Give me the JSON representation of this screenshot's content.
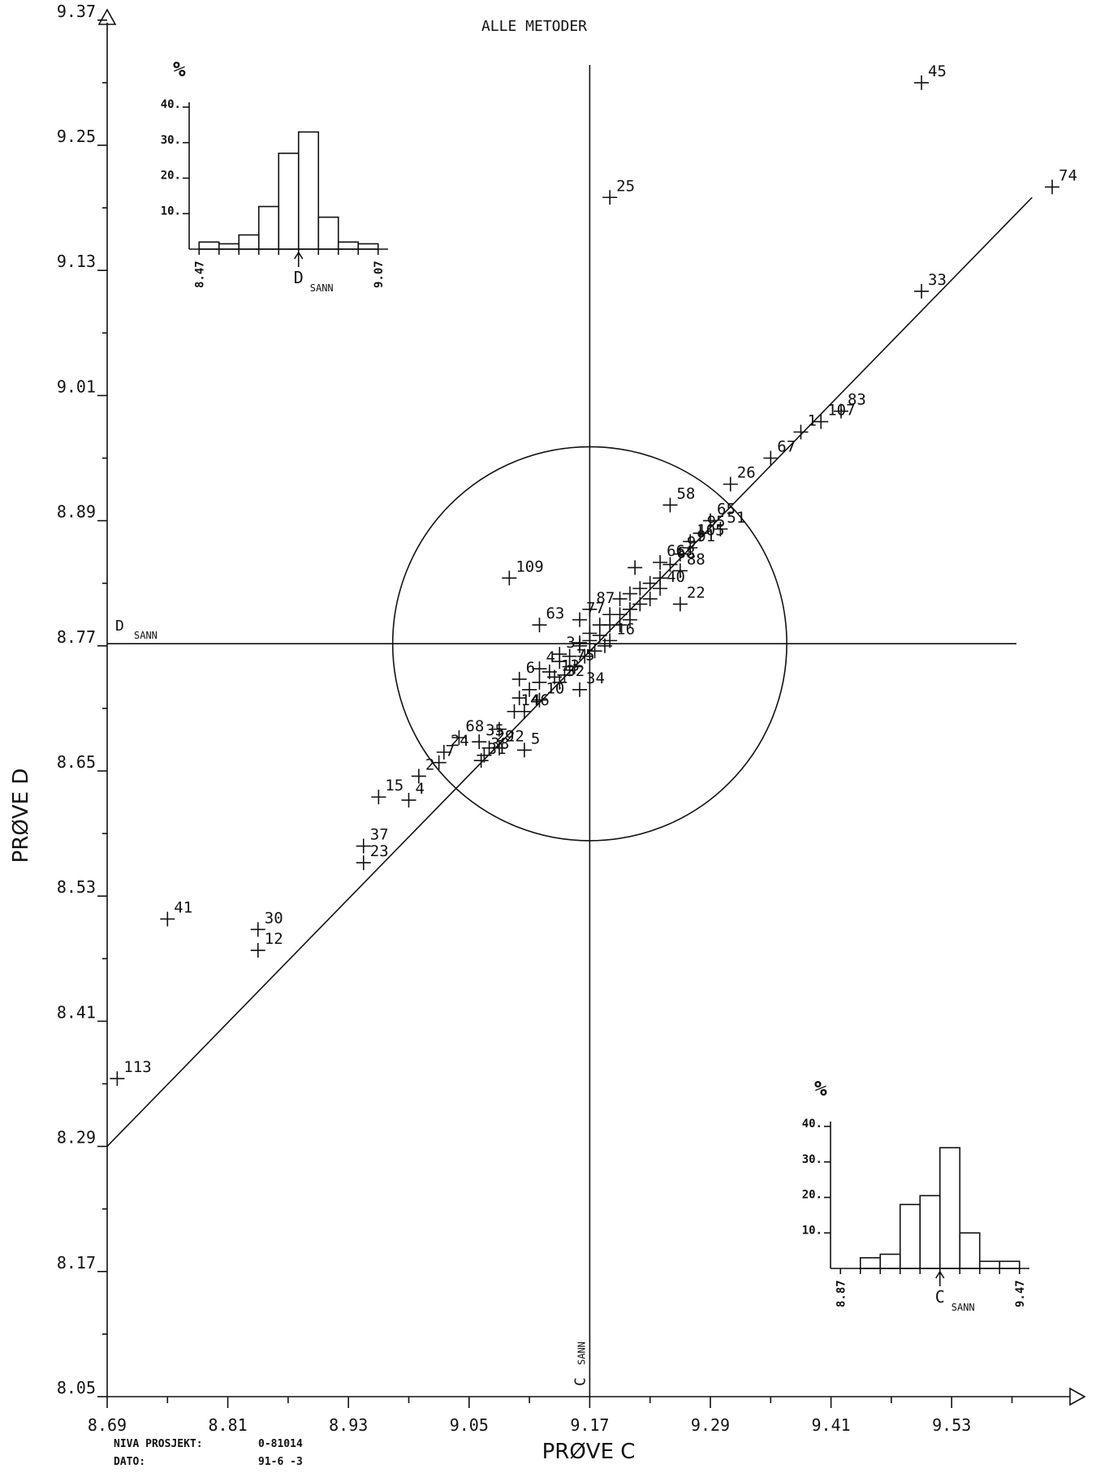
{
  "page": {
    "title": "ALLE METODER",
    "footer_project_label": "NIVA PROSJEKT:",
    "footer_project_value": "0-81014",
    "footer_date_label": "DATO:",
    "footer_date_value": "91-6 -3"
  },
  "chart_data": {
    "type": "scatter",
    "title": "ALLE METODER",
    "xlabel": "PRØVE C",
    "ylabel": "PRØVE D",
    "xlim": [
      8.69,
      9.65
    ],
    "ylim": [
      8.05,
      9.41
    ],
    "xticks": [
      "8.69",
      "8.81",
      "8.93",
      "9.05",
      "9.17",
      "9.29",
      "9.41",
      "9.53"
    ],
    "yticks": [
      "8.05",
      "8.17",
      "8.29",
      "8.41",
      "8.53",
      "8.65",
      "8.77",
      "8.89",
      "9.01",
      "9.13",
      "9.25",
      "9.37"
    ],
    "true_value_x": 9.17,
    "true_value_y": 8.772,
    "true_value_x_label": "C SANN",
    "true_value_y_label": "D SANN",
    "reference_line": {
      "x": [
        8.69,
        9.61
      ],
      "y": [
        8.29,
        9.2
      ]
    },
    "circle_radius": 0.196,
    "points": [
      {
        "label": "45",
        "x": 9.5,
        "y": 9.31
      },
      {
        "label": "74",
        "x": 9.63,
        "y": 9.21
      },
      {
        "label": "25",
        "x": 9.19,
        "y": 9.2
      },
      {
        "label": "33",
        "x": 9.5,
        "y": 9.11
      },
      {
        "label": "83",
        "x": 9.42,
        "y": 8.995
      },
      {
        "label": "107",
        "x": 9.4,
        "y": 8.985
      },
      {
        "label": "1",
        "x": 9.38,
        "y": 8.975
      },
      {
        "label": "67",
        "x": 9.35,
        "y": 8.95
      },
      {
        "label": "26",
        "x": 9.31,
        "y": 8.925
      },
      {
        "label": "58",
        "x": 9.25,
        "y": 8.905
      },
      {
        "label": "65",
        "x": 9.29,
        "y": 8.89
      },
      {
        "label": "51",
        "x": 9.3,
        "y": 8.882
      },
      {
        "label": "95",
        "x": 9.28,
        "y": 8.878
      },
      {
        "label": "105",
        "x": 9.27,
        "y": 8.87
      },
      {
        "label": "91",
        "x": 9.27,
        "y": 8.864
      },
      {
        "label": "9",
        "x": 9.26,
        "y": 8.858
      },
      {
        "label": "66",
        "x": 9.24,
        "y": 8.85
      },
      {
        "label": "68",
        "x": 9.25,
        "y": 8.848
      },
      {
        "label": "88",
        "x": 9.26,
        "y": 8.842
      },
      {
        "label": "40",
        "x": 9.24,
        "y": 8.825
      },
      {
        "label": "22",
        "x": 9.26,
        "y": 8.81
      },
      {
        "label": "109",
        "x": 9.09,
        "y": 8.835
      },
      {
        "label": "63",
        "x": 9.12,
        "y": 8.79
      },
      {
        "label": "77",
        "x": 9.16,
        "y": 8.795
      },
      {
        "label": "87",
        "x": 9.17,
        "y": 8.805
      },
      {
        "label": "16",
        "x": 9.19,
        "y": 8.775
      },
      {
        "label": "3",
        "x": 9.14,
        "y": 8.762
      },
      {
        "label": "4",
        "x": 9.12,
        "y": 8.748
      },
      {
        "label": "13",
        "x": 9.135,
        "y": 8.74
      },
      {
        "label": "32",
        "x": 9.14,
        "y": 8.735
      },
      {
        "label": "75",
        "x": 9.15,
        "y": 8.75
      },
      {
        "label": "6",
        "x": 9.1,
        "y": 8.738
      },
      {
        "label": "34",
        "x": 9.16,
        "y": 8.728
      },
      {
        "label": "10",
        "x": 9.12,
        "y": 8.718
      },
      {
        "label": "14",
        "x": 9.095,
        "y": 8.707
      },
      {
        "label": "46",
        "x": 9.105,
        "y": 8.707
      },
      {
        "label": "68",
        "x": 9.04,
        "y": 8.682
      },
      {
        "label": "35",
        "x": 9.06,
        "y": 8.678
      },
      {
        "label": "24",
        "x": 9.025,
        "y": 8.668
      },
      {
        "label": "29",
        "x": 9.07,
        "y": 8.672
      },
      {
        "label": "31",
        "x": 9.062,
        "y": 8.66
      },
      {
        "label": "38",
        "x": 9.065,
        "y": 8.665
      },
      {
        "label": "22",
        "x": 9.08,
        "y": 8.672
      },
      {
        "label": "5",
        "x": 9.105,
        "y": 8.67
      },
      {
        "label": "7",
        "x": 9.02,
        "y": 8.658
      },
      {
        "label": "2",
        "x": 9.0,
        "y": 8.645
      },
      {
        "label": "15",
        "x": 8.96,
        "y": 8.625
      },
      {
        "label": "4",
        "x": 8.99,
        "y": 8.622
      },
      {
        "label": "37",
        "x": 8.945,
        "y": 8.578
      },
      {
        "label": "23",
        "x": 8.945,
        "y": 8.562
      },
      {
        "label": "41",
        "x": 8.75,
        "y": 8.508
      },
      {
        "label": "30",
        "x": 8.84,
        "y": 8.498
      },
      {
        "label": "12",
        "x": 8.84,
        "y": 8.478
      },
      {
        "label": "113",
        "x": 8.7,
        "y": 8.355
      }
    ],
    "cluster_points": [
      [
        9.15,
        8.76
      ],
      [
        9.16,
        8.77
      ],
      [
        9.17,
        8.775
      ],
      [
        9.18,
        8.78
      ],
      [
        9.19,
        8.79
      ],
      [
        9.2,
        8.8
      ],
      [
        9.21,
        8.805
      ],
      [
        9.22,
        8.81
      ],
      [
        9.2,
        8.815
      ],
      [
        9.21,
        8.82
      ],
      [
        9.22,
        8.825
      ],
      [
        9.23,
        8.83
      ],
      [
        9.19,
        8.8
      ],
      [
        9.18,
        8.79
      ],
      [
        9.17,
        8.782
      ],
      [
        9.16,
        8.773
      ],
      [
        9.14,
        8.755
      ],
      [
        9.13,
        8.745
      ],
      [
        9.12,
        8.735
      ],
      [
        9.11,
        8.728
      ],
      [
        9.1,
        8.72
      ],
      [
        9.23,
        8.815
      ],
      [
        9.24,
        8.835
      ],
      [
        9.215,
        8.845
      ],
      [
        9.2,
        8.79
      ],
      [
        9.21,
        8.795
      ],
      [
        9.185,
        8.77
      ],
      [
        9.175,
        8.765
      ],
      [
        9.165,
        8.76
      ],
      [
        9.155,
        8.75
      ],
      [
        9.145,
        8.742
      ],
      [
        9.08,
        8.69
      ]
    ]
  },
  "histogram_d": {
    "title": "%",
    "yticks": [
      "10.",
      "20.",
      "30.",
      "40."
    ],
    "values": [
      2,
      1.5,
      4,
      12,
      27,
      33,
      9,
      2,
      1.5
    ],
    "ymax": 40,
    "x_start_label": "8.47",
    "x_end_label": "9.07",
    "marker_label": "D",
    "marker_sub": "SANN"
  },
  "histogram_c": {
    "title": "%",
    "yticks": [
      "10.",
      "20.",
      "30.",
      "40."
    ],
    "values": [
      0,
      3,
      4,
      18,
      20.5,
      34,
      10,
      2,
      2
    ],
    "ymax": 40,
    "x_start_label": "8.87",
    "x_end_label": "9.47",
    "marker_label": "C",
    "marker_sub": "SANN"
  }
}
